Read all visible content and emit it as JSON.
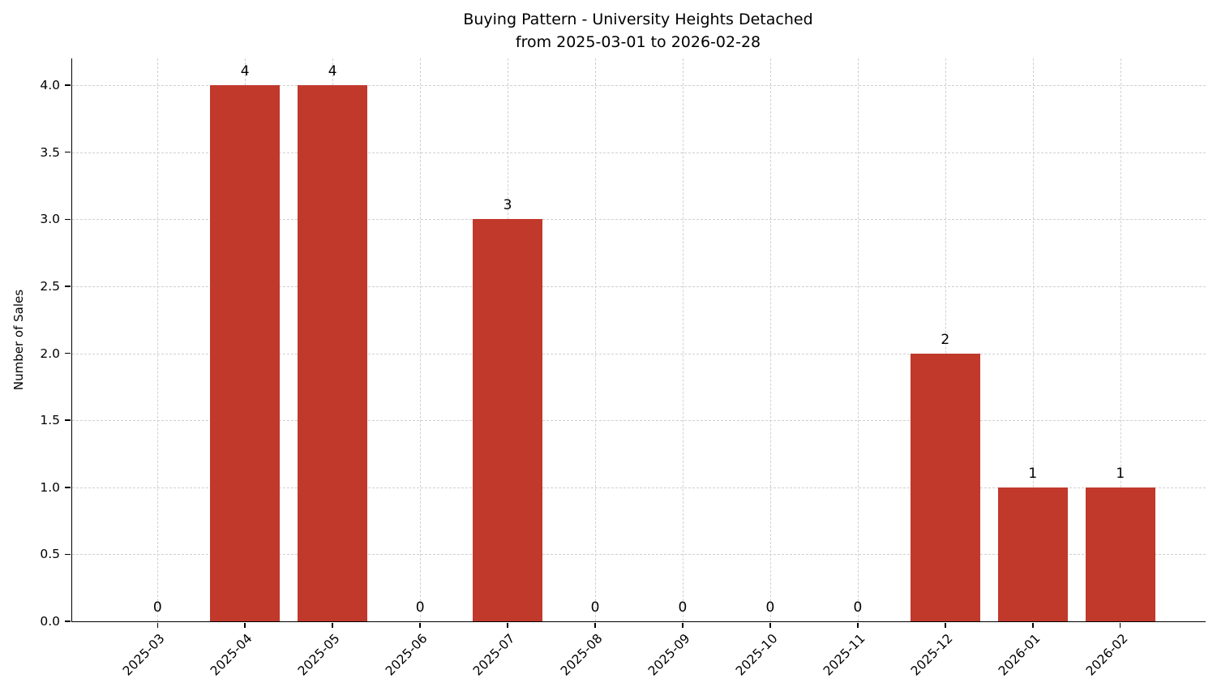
{
  "figure": {
    "title": "Buying Pattern - University Heights Detached",
    "subtitle": "from 2025-03-01 to 2026-02-28",
    "ylabel": "Number of Sales"
  },
  "chart_data": {
    "type": "bar",
    "title": "Buying Pattern - University Heights Detached",
    "subtitle": "from 2025-03-01 to 2026-02-28",
    "categories": [
      "2025-03",
      "2025-04",
      "2025-05",
      "2025-06",
      "2025-07",
      "2025-08",
      "2025-09",
      "2025-10",
      "2025-11",
      "2025-12",
      "2026-01",
      "2026-02"
    ],
    "values": [
      0,
      4,
      4,
      0,
      3,
      0,
      0,
      0,
      0,
      2,
      1,
      1
    ],
    "xlabel": "",
    "ylabel": "Number of Sales",
    "ylim": [
      0,
      4.2
    ],
    "ytick_step": 0.5,
    "yticks": [
      "0.0",
      "0.5",
      "1.0",
      "1.5",
      "2.0",
      "2.5",
      "3.0",
      "3.5",
      "4.0"
    ],
    "bar_color": "#c0392b",
    "grid": true,
    "grid_style": "dashed",
    "grid_color": "#d0d0d0",
    "value_labels": true,
    "legend": "none",
    "x_tick_rotation_deg": 45
  }
}
